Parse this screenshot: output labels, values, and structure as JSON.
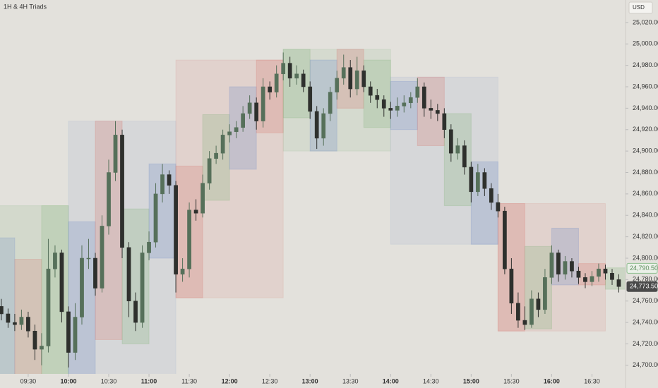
{
  "chart_data": {
    "type": "candlestick",
    "title": "1H & 4H Triads",
    "currency": "USD",
    "xlim": [
      "09:09",
      "16:55"
    ],
    "ylim": [
      24692,
      25041
    ],
    "yticks": [
      {
        "value": 24700,
        "label": "24,700.00"
      },
      {
        "value": 24720,
        "label": "24,720.00"
      },
      {
        "value": 24740,
        "label": "24,740.00"
      },
      {
        "value": 24760,
        "label": "24,760.00"
      },
      {
        "value": 24780,
        "label": "24,780.00"
      },
      {
        "value": 24800,
        "label": "24,800.00"
      },
      {
        "value": 24820,
        "label": "24,820.00"
      },
      {
        "value": 24840,
        "label": "24,840.00"
      },
      {
        "value": 24860,
        "label": "24,860.00"
      },
      {
        "value": 24880,
        "label": "24,880.00"
      },
      {
        "value": 24900,
        "label": "24,900.00"
      },
      {
        "value": 24920,
        "label": "24,920.00"
      },
      {
        "value": 24940,
        "label": "24,940.00"
      },
      {
        "value": 24960,
        "label": "24,960.00"
      },
      {
        "value": 24980,
        "label": "24,980.00"
      },
      {
        "value": 25000,
        "label": "25,000.00"
      },
      {
        "value": 25020,
        "label": "25,020.00"
      }
    ],
    "xticks": [
      "09:30",
      "10:00",
      "10:30",
      "11:00",
      "11:30",
      "12:00",
      "12:30",
      "13:00",
      "13:30",
      "14:00",
      "14:30",
      "15:00",
      "15:30",
      "16:00",
      "16:30"
    ],
    "up_color": "#56705a",
    "down_color": "#2e302d",
    "x": [
      "09:10",
      "09:15",
      "09:20",
      "09:25",
      "09:30",
      "09:35",
      "09:40",
      "09:45",
      "09:50",
      "09:55",
      "10:00",
      "10:05",
      "10:10",
      "10:15",
      "10:20",
      "10:25",
      "10:30",
      "10:35",
      "10:40",
      "10:45",
      "10:50",
      "10:55",
      "11:00",
      "11:05",
      "11:10",
      "11:15",
      "11:20",
      "11:25",
      "11:30",
      "11:35",
      "11:40",
      "11:45",
      "11:50",
      "11:55",
      "12:00",
      "12:05",
      "12:10",
      "12:15",
      "12:20",
      "12:25",
      "12:30",
      "12:35",
      "12:40",
      "12:45",
      "12:50",
      "12:55",
      "13:00",
      "13:05",
      "13:10",
      "13:15",
      "13:20",
      "13:25",
      "13:30",
      "13:35",
      "13:40",
      "13:45",
      "13:50",
      "13:55",
      "14:00",
      "14:05",
      "14:10",
      "14:15",
      "14:20",
      "14:25",
      "14:30",
      "14:35",
      "14:40",
      "14:45",
      "14:50",
      "14:55",
      "15:00",
      "15:05",
      "15:10",
      "15:15",
      "15:20",
      "15:25",
      "15:30",
      "15:35",
      "15:40",
      "15:45",
      "15:50",
      "15:55",
      "16:00",
      "16:05",
      "16:10",
      "16:15",
      "16:20",
      "16:25",
      "16:30",
      "16:35",
      "16:40",
      "16:45",
      "16:50"
    ],
    "open": [
      24755,
      24748,
      24740,
      24738,
      24745,
      24732,
      24715,
      24718,
      24790,
      24805,
      24750,
      24712,
      24745,
      24800,
      24800,
      24772,
      24830,
      24880,
      24915,
      24810,
      24760,
      24740,
      24805,
      24815,
      24860,
      24878,
      24868,
      24785,
      24790,
      24845,
      24842,
      24870,
      24893,
      24898,
      24915,
      24918,
      24922,
      24935,
      24945,
      24928,
      24960,
      24955,
      24972,
      24982,
      24968,
      24972,
      24960,
      24937,
      24912,
      24935,
      24955,
      24968,
      24978,
      24958,
      24975,
      24960,
      24952,
      24948,
      24940,
      24938,
      24942,
      24945,
      24950,
      24960,
      24940,
      24938,
      24935,
      24920,
      24898,
      24905,
      24885,
      24862,
      24880,
      24865,
      24852,
      24844,
      24790,
      24758,
      24742,
      24738,
      24762,
      24752,
      24782,
      24805,
      24785,
      24797,
      24788,
      24782,
      24778,
      24783,
      24790,
      24786,
      24780
    ],
    "high": [
      24762,
      24753,
      24748,
      24752,
      24750,
      24738,
      24730,
      24818,
      24812,
      24808,
      24755,
      24758,
      24812,
      24818,
      24805,
      24840,
      24892,
      24928,
      24920,
      24815,
      24768,
      24812,
      24825,
      24870,
      24888,
      24882,
      24872,
      24800,
      24852,
      24855,
      24878,
      24900,
      24905,
      24920,
      24925,
      24928,
      24942,
      24952,
      24950,
      24968,
      24965,
      24980,
      24992,
      24988,
      24980,
      24976,
      24965,
      24942,
      24940,
      24960,
      24975,
      24990,
      24985,
      24988,
      24980,
      24965,
      24958,
      24952,
      24946,
      24950,
      24952,
      24955,
      24968,
      24964,
      24948,
      24944,
      24940,
      24925,
      24912,
      24910,
      24890,
      24888,
      24884,
      24870,
      24860,
      24848,
      24800,
      24768,
      24755,
      24770,
      24768,
      24790,
      24812,
      24808,
      24802,
      24800,
      24792,
      24786,
      24788,
      24795,
      24794,
      24790,
      24785
    ],
    "low": [
      24742,
      24735,
      24732,
      24733,
      24726,
      24705,
      24700,
      24712,
      24782,
      24740,
      24698,
      24705,
      24738,
      24790,
      24765,
      24768,
      24822,
      24872,
      24800,
      24745,
      24732,
      24735,
      24798,
      24810,
      24852,
      24860,
      24768,
      24778,
      24782,
      24835,
      24838,
      24864,
      24888,
      24892,
      24908,
      24912,
      24918,
      24930,
      24920,
      24922,
      24948,
      24950,
      24966,
      24960,
      24962,
      24955,
      24930,
      24902,
      24905,
      24928,
      24948,
      24962,
      24950,
      24952,
      24955,
      24945,
      24940,
      24932,
      24930,
      24932,
      24936,
      24940,
      24945,
      24932,
      24930,
      24928,
      24912,
      24890,
      24892,
      24878,
      24852,
      24858,
      24858,
      24845,
      24838,
      24785,
      24748,
      24735,
      24733,
      24735,
      24745,
      24748,
      24776,
      24778,
      24780,
      24782,
      24776,
      24772,
      24774,
      24778,
      24780,
      24775,
      24768
    ],
    "close": [
      24748,
      24740,
      24738,
      24745,
      24732,
      24715,
      24718,
      24790,
      24805,
      24750,
      24712,
      24745,
      24800,
      24800,
      24772,
      24830,
      24880,
      24915,
      24810,
      24760,
      24740,
      24805,
      24815,
      24860,
      24878,
      24868,
      24785,
      24790,
      24845,
      24842,
      24870,
      24893,
      24898,
      24915,
      24918,
      24922,
      24935,
      24945,
      24928,
      24960,
      24955,
      24972,
      24982,
      24968,
      24972,
      24960,
      24937,
      24912,
      24935,
      24955,
      24968,
      24978,
      24958,
      24975,
      24960,
      24952,
      24948,
      24940,
      24938,
      24942,
      24945,
      24950,
      24960,
      24940,
      24938,
      24935,
      24920,
      24898,
      24905,
      24885,
      24862,
      24880,
      24865,
      24852,
      24844,
      24790,
      24758,
      24742,
      24738,
      24762,
      24752,
      24782,
      24805,
      24785,
      24797,
      24788,
      24782,
      24778,
      24783,
      24790,
      24786,
      24780,
      24773.5
    ],
    "boxes": [
      {
        "start": "08:40",
        "end": "10:00",
        "top": 24849,
        "bottom": 24680,
        "color": "rgba(130,180,125,0.16)"
      },
      {
        "start": "09:00",
        "end": "09:20",
        "top": 24819,
        "bottom": 24680,
        "color": "rgba(110,140,200,0.22)"
      },
      {
        "start": "09:20",
        "end": "09:40",
        "top": 24799,
        "bottom": 24680,
        "color": "rgba(214,120,110,0.22)"
      },
      {
        "start": "09:40",
        "end": "10:00",
        "top": 24849,
        "bottom": 24680,
        "color": "rgba(130,180,125,0.22)"
      },
      {
        "start": "10:00",
        "end": "11:20",
        "top": 24928,
        "bottom": 24680,
        "color": "rgba(150,165,205,0.16)"
      },
      {
        "start": "10:00",
        "end": "10:20",
        "top": 24834,
        "bottom": 24680,
        "color": "rgba(110,140,200,0.25)"
      },
      {
        "start": "10:20",
        "end": "10:40",
        "top": 24928,
        "bottom": 24724,
        "color": "rgba(214,120,110,0.25)"
      },
      {
        "start": "10:40",
        "end": "11:00",
        "top": 24846,
        "bottom": 24720,
        "color": "rgba(130,180,125,0.25)"
      },
      {
        "start": "11:00",
        "end": "11:20",
        "top": 24888,
        "bottom": 24800,
        "color": "rgba(110,140,200,0.25)"
      },
      {
        "start": "11:20",
        "end": "12:40",
        "top": 24985,
        "bottom": 24763,
        "color": "rgba(214,120,110,0.14)"
      },
      {
        "start": "11:20",
        "end": "11:40",
        "top": 24886,
        "bottom": 24763,
        "color": "rgba(214,120,110,0.25)"
      },
      {
        "start": "11:40",
        "end": "12:00",
        "top": 24934,
        "bottom": 24854,
        "color": "rgba(130,180,125,0.25)"
      },
      {
        "start": "12:00",
        "end": "12:20",
        "top": 24960,
        "bottom": 24883,
        "color": "rgba(110,140,200,0.25)"
      },
      {
        "start": "12:20",
        "end": "12:40",
        "top": 24985,
        "bottom": 24917,
        "color": "rgba(214,120,110,0.25)"
      },
      {
        "start": "12:40",
        "end": "14:00",
        "top": 24995,
        "bottom": 24900,
        "color": "rgba(130,180,125,0.14)"
      },
      {
        "start": "12:40",
        "end": "13:00",
        "top": 24995,
        "bottom": 24931,
        "color": "rgba(130,180,125,0.25)"
      },
      {
        "start": "13:00",
        "end": "13:20",
        "top": 24985,
        "bottom": 24900,
        "color": "rgba(110,140,200,0.25)"
      },
      {
        "start": "13:20",
        "end": "13:40",
        "top": 24995,
        "bottom": 24940,
        "color": "rgba(214,120,110,0.25)"
      },
      {
        "start": "13:40",
        "end": "14:00",
        "top": 24985,
        "bottom": 24922,
        "color": "rgba(130,180,125,0.25)"
      },
      {
        "start": "14:00",
        "end": "15:20",
        "top": 24969,
        "bottom": 24813,
        "color": "rgba(150,165,205,0.16)"
      },
      {
        "start": "14:00",
        "end": "14:20",
        "top": 24965,
        "bottom": 24920,
        "color": "rgba(110,140,200,0.25)"
      },
      {
        "start": "14:20",
        "end": "14:40",
        "top": 24969,
        "bottom": 24905,
        "color": "rgba(214,120,110,0.25)"
      },
      {
        "start": "14:40",
        "end": "15:00",
        "top": 24935,
        "bottom": 24849,
        "color": "rgba(130,180,125,0.25)"
      },
      {
        "start": "15:00",
        "end": "15:20",
        "top": 24890,
        "bottom": 24813,
        "color": "rgba(110,140,200,0.25)"
      },
      {
        "start": "15:20",
        "end": "16:40",
        "top": 24851,
        "bottom": 24732,
        "color": "rgba(214,120,110,0.14)"
      },
      {
        "start": "15:20",
        "end": "15:40",
        "top": 24851,
        "bottom": 24732,
        "color": "rgba(214,120,110,0.25)"
      },
      {
        "start": "15:40",
        "end": "16:00",
        "top": 24811,
        "bottom": 24734,
        "color": "rgba(130,180,125,0.25)"
      },
      {
        "start": "16:00",
        "end": "16:20",
        "top": 24828,
        "bottom": 24775,
        "color": "rgba(110,140,200,0.25)"
      },
      {
        "start": "16:20",
        "end": "16:40",
        "top": 24795,
        "bottom": 24775,
        "color": "rgba(214,120,110,0.25)"
      },
      {
        "start": "16:40",
        "end": "17:00",
        "top": 24791,
        "bottom": 24771,
        "color": "rgba(130,180,125,0.25)"
      }
    ],
    "price_labels": [
      {
        "value": 24790.5,
        "label": "24,790.50",
        "color": "#eaf0e8",
        "text_color": "#5f8f5f",
        "border": "#8fbf8f"
      },
      {
        "value": 24773.5,
        "label": "24,773.50",
        "color": "#4a4a4a",
        "text_color": "#ffffff",
        "border": "#4a4a4a"
      }
    ]
  }
}
